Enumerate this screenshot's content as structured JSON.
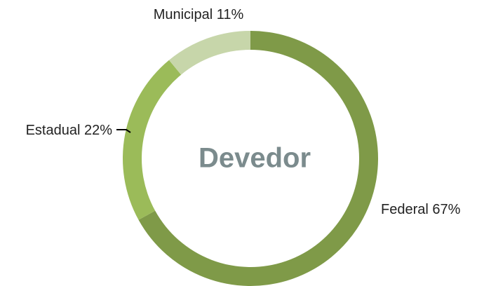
{
  "chart_data": {
    "type": "donut",
    "title": "Devedor",
    "categories": [
      "Federal",
      "Estadual",
      "Municipal"
    ],
    "values": [
      67,
      22,
      11
    ],
    "value_labels": [
      "67%",
      "22%",
      "11%"
    ],
    "colors": [
      "#7f9a48",
      "#9bbb59",
      "#c7d6aa"
    ]
  }
}
